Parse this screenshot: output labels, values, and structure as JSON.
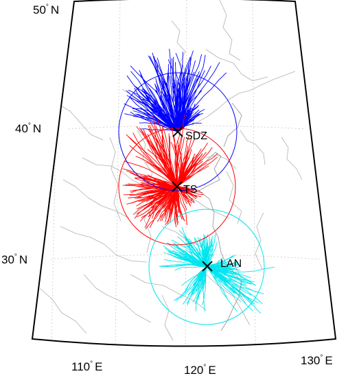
{
  "colors": {
    "frame": "#000000",
    "grid": "#c8c8c8",
    "borders": "#b0b0b0",
    "sdz": "#0000ff",
    "ts": "#ff0000",
    "lan": "#00e5ee"
  },
  "axis_labels": {
    "lat_50": "50",
    "lat_40": "40",
    "lat_30": "30",
    "lat_unit": "N",
    "lon_110": "110",
    "lon_120": "120",
    "lon_130": "130",
    "lon_unit": "E",
    "degree_symbol": "°"
  },
  "stations": [
    {
      "id": "sdz",
      "name": "SDZ",
      "lon": 117.1,
      "lat": 40.6,
      "color": "#0000ff"
    },
    {
      "id": "ts",
      "name": "TS",
      "lon": 116.9,
      "lat": 36.3,
      "color": "#ff0000"
    },
    {
      "id": "lan",
      "name": "LAN",
      "lon": 119.6,
      "lat": 30.3,
      "color": "#00e5ee"
    }
  ]
}
